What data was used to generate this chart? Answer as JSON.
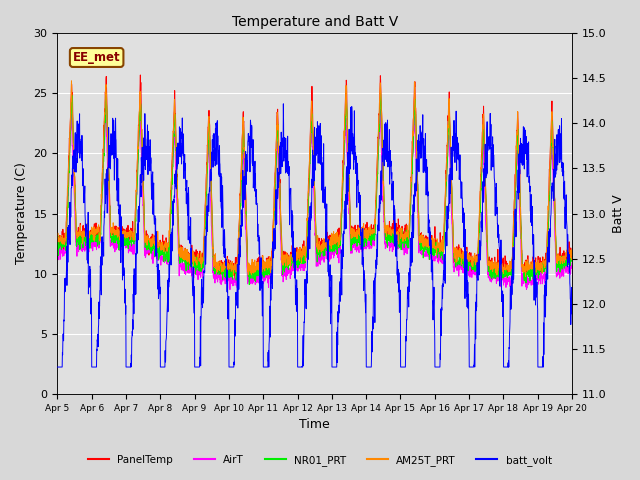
{
  "title": "Temperature and Batt V",
  "xlabel": "Time",
  "ylabel_left": "Temperature (C)",
  "ylabel_right": "Batt V",
  "annotation": "EE_met",
  "x_tick_labels": [
    "Apr 5",
    "Apr 6",
    "Apr 7",
    "Apr 8",
    "Apr 9",
    "Apr 10",
    "Apr 11",
    "Apr 12",
    "Apr 13",
    "Apr 14",
    "Apr 15",
    "Apr 16",
    "Apr 17",
    "Apr 18",
    "Apr 19",
    "Apr 20"
  ],
  "ylim_left": [
    0,
    30
  ],
  "ylim_right": [
    11.0,
    15.0
  ],
  "yticks_left": [
    0,
    5,
    10,
    15,
    20,
    25,
    30
  ],
  "yticks_right": [
    11.0,
    11.5,
    12.0,
    12.5,
    13.0,
    13.5,
    14.0,
    14.5,
    15.0
  ],
  "colors": {
    "PanelTemp": "#ff0000",
    "AirT": "#ff00ff",
    "NR01_PRT": "#00ee00",
    "AM25T_PRT": "#ff8800",
    "batt_volt": "#0000ff"
  },
  "legend_labels": [
    "PanelTemp",
    "AirT",
    "NR01_PRT",
    "AM25T_PRT",
    "batt_volt"
  ],
  "fig_bg_color": "#d8d8d8",
  "plot_bg_color": "#e0e0e0",
  "grid_color": "#ffffff",
  "annotation_bg": "#ffff99",
  "annotation_fg": "#880000",
  "annotation_border": "#884400"
}
